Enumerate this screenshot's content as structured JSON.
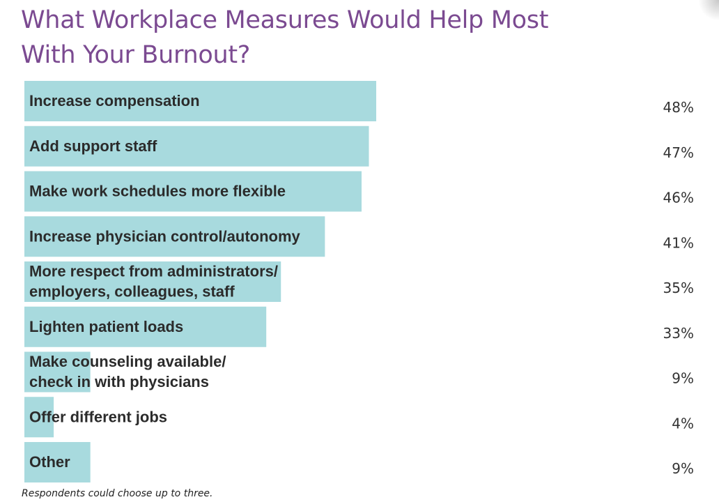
{
  "title_lines": [
    "What Workplace Measures Would Help Most",
    "With Your Burnout?"
  ],
  "footnote": "Respondents could choose up to three.",
  "colors": {
    "bar": "#a8dade",
    "title": "#7b4a91",
    "label": "#2b2b2b",
    "value": "#333333"
  },
  "chart_data": {
    "type": "bar",
    "orientation": "horizontal",
    "title": "What Workplace Measures Would Help Most With Your Burnout?",
    "categories": [
      [
        "Increase compensation"
      ],
      [
        "Add support staff"
      ],
      [
        "Make work schedules more flexible"
      ],
      [
        "Increase physician control/autonomy"
      ],
      [
        "More respect from administrators/",
        "employers, colleagues, staff"
      ],
      [
        "Lighten patient loads"
      ],
      [
        "Make counseling available/",
        "check in with physicians"
      ],
      [
        "Offer different jobs"
      ],
      [
        "Other"
      ]
    ],
    "values": [
      48,
      47,
      46,
      41,
      35,
      33,
      9,
      4,
      9
    ],
    "value_labels": [
      "48%",
      "47%",
      "46%",
      "41%",
      "35%",
      "33%",
      "9%",
      "4%",
      "9%"
    ],
    "unit": "%",
    "xlim": [
      0,
      100
    ],
    "xlabel": "",
    "ylabel": "",
    "grid": false,
    "legend": "none"
  }
}
